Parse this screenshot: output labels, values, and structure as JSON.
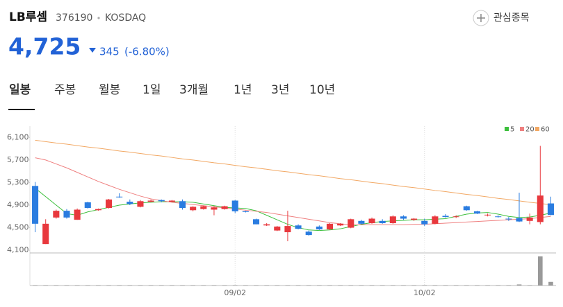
{
  "header": {
    "name": "LB루셈",
    "code": "376190",
    "market": "KOSDAQ",
    "watch": "관심종목",
    "price": "4,725",
    "change": "345",
    "change_pct": "(-6.80%)"
  },
  "tabs": [
    "일봉",
    "주봉",
    "월봉",
    "1일",
    "3개월",
    "1년",
    "3년",
    "10년"
  ],
  "chart_data": {
    "type": "candlestick",
    "categories": [
      null,
      null,
      null,
      null,
      null,
      null,
      null,
      null,
      null,
      null,
      null,
      null,
      null,
      null,
      null,
      null,
      null,
      null,
      null,
      "09/02",
      null,
      null,
      null,
      null,
      null,
      null,
      null,
      null,
      null,
      null,
      null,
      null,
      null,
      null,
      null,
      null,
      null,
      "10/02",
      null,
      null,
      null,
      null,
      null,
      null,
      null,
      null,
      null,
      null,
      null,
      null
    ],
    "candles": [
      [
        5240,
        5310,
        4420,
        4570
      ],
      [
        4210,
        4650,
        4210,
        4570
      ],
      [
        4680,
        4820,
        4660,
        4800
      ],
      [
        4800,
        4830,
        4660,
        4680
      ],
      [
        4640,
        4840,
        4640,
        4820
      ],
      [
        4950,
        4960,
        4840,
        4850
      ],
      [
        4810,
        4840,
        4800,
        4830
      ],
      [
        4850,
        5010,
        4840,
        5000
      ],
      [
        5050,
        5110,
        5030,
        5040
      ],
      [
        4960,
        5000,
        4900,
        4920
      ],
      [
        4870,
        4990,
        4860,
        4970
      ],
      [
        4960,
        5000,
        4950,
        4980
      ],
      [
        4990,
        5000,
        4950,
        4970
      ],
      [
        4960,
        4990,
        4950,
        4980
      ],
      [
        4970,
        5000,
        4820,
        4850
      ],
      [
        4810,
        4880,
        4790,
        4870
      ],
      [
        4830,
        4890,
        4820,
        4880
      ],
      [
        4820,
        4880,
        4720,
        4860
      ],
      [
        4830,
        4890,
        4820,
        4880
      ],
      [
        4980,
        4990,
        4760,
        4790
      ],
      [
        4790,
        4800,
        4770,
        4780
      ],
      [
        4650,
        4660,
        4560,
        4560
      ],
      [
        4540,
        4580,
        4530,
        4560
      ],
      [
        4450,
        4530,
        4440,
        4520
      ],
      [
        4420,
        4800,
        4260,
        4530
      ],
      [
        4540,
        4560,
        4470,
        4480
      ],
      [
        4430,
        4450,
        4360,
        4370
      ],
      [
        4520,
        4540,
        4460,
        4470
      ],
      [
        4470,
        4580,
        4460,
        4570
      ],
      [
        4540,
        4580,
        4530,
        4570
      ],
      [
        4500,
        4660,
        4490,
        4650
      ],
      [
        4620,
        4640,
        4560,
        4570
      ],
      [
        4580,
        4680,
        4570,
        4660
      ],
      [
        4620,
        4650,
        4570,
        4580
      ],
      [
        4580,
        4720,
        4570,
        4700
      ],
      [
        4700,
        4720,
        4640,
        4660
      ],
      [
        4640,
        4670,
        4620,
        4660
      ],
      [
        4620,
        4660,
        4530,
        4560
      ],
      [
        4570,
        4720,
        4560,
        4700
      ],
      [
        4710,
        4740,
        4680,
        4690
      ],
      [
        4690,
        4720,
        4670,
        4700
      ],
      [
        4880,
        4890,
        4800,
        4810
      ],
      [
        4790,
        4800,
        4740,
        4750
      ],
      [
        4720,
        4750,
        4700,
        4730
      ],
      [
        4700,
        4720,
        4680,
        4690
      ],
      [
        4660,
        4690,
        4620,
        4650
      ],
      [
        4670,
        5120,
        4600,
        4610
      ],
      [
        4620,
        4750,
        4560,
        4680
      ],
      [
        4600,
        5950,
        4560,
        5070
      ],
      [
        4930,
        5050,
        4720,
        4725
      ]
    ],
    "up_color": "#e8383d",
    "down_color": "#2a7ce0",
    "volume": [
      60000,
      60000,
      60000,
      60000,
      60000,
      60000,
      60000,
      60000,
      60000,
      60000,
      60000,
      60000,
      60000,
      60000,
      60000,
      60000,
      60000,
      60000,
      60000,
      60000,
      60000,
      60000,
      60000,
      60000,
      60000,
      60000,
      60000,
      60000,
      60000,
      60000,
      60000,
      60000,
      60000,
      60000,
      60000,
      60000,
      60000,
      60000,
      60000,
      60000,
      60000,
      60000,
      60000,
      60000,
      60000,
      60000,
      150000,
      60000,
      4000000,
      500000
    ],
    "volume_color": "#9a9a9a",
    "series": [
      {
        "name": "5",
        "color": "#3cbf3c",
        "values": [
          5200,
          5050,
          4900,
          4750,
          4720,
          4780,
          4820,
          4860,
          4900,
          4920,
          4940,
          4950,
          4960,
          4960,
          4960,
          4950,
          4920,
          4890,
          4860,
          4850,
          4840,
          4800,
          4720,
          4640,
          4560,
          4500,
          4460,
          4450,
          4460,
          4480,
          4520,
          4560,
          4590,
          4610,
          4620,
          4630,
          4640,
          4640,
          4650,
          4660,
          4700,
          4740,
          4760,
          4770,
          4740,
          4700,
          4680,
          4690,
          4720,
          4760
        ]
      },
      {
        "name": "20",
        "color": "#ef8080",
        "values": [
          5740,
          5700,
          5630,
          5560,
          5480,
          5400,
          5320,
          5250,
          5180,
          5120,
          5060,
          5010,
          4980,
          4950,
          4930,
          4910,
          4890,
          4870,
          4850,
          4830,
          4810,
          4790,
          4770,
          4740,
          4710,
          4680,
          4650,
          4620,
          4590,
          4570,
          4550,
          4550,
          4550,
          4550,
          4550,
          4550,
          4560,
          4560,
          4570,
          4580,
          4590,
          4600,
          4610,
          4620,
          4630,
          4640,
          4650,
          4660,
          4680,
          4700
        ]
      },
      {
        "name": "60",
        "color": "#f2a864",
        "values": [
          6050,
          6025,
          6000,
          5980,
          5955,
          5930,
          5910,
          5885,
          5860,
          5840,
          5815,
          5790,
          5770,
          5745,
          5720,
          5700,
          5675,
          5650,
          5630,
          5605,
          5580,
          5560,
          5535,
          5510,
          5490,
          5465,
          5440,
          5420,
          5395,
          5370,
          5350,
          5325,
          5300,
          5280,
          5255,
          5230,
          5210,
          5185,
          5160,
          5140,
          5115,
          5090,
          5070,
          5045,
          5020,
          5000,
          4975,
          4950,
          4930,
          4905
        ]
      }
    ],
    "ylim": [
      4040,
      6300
    ],
    "yticks": [
      {
        "value": 4100,
        "label": "4,100"
      },
      {
        "value": 4500,
        "label": "4,500"
      },
      {
        "value": 4900,
        "label": "4,900"
      },
      {
        "value": 5300,
        "label": "5,300"
      },
      {
        "value": 5700,
        "label": "5,700"
      },
      {
        "value": 6100,
        "label": "6,100"
      }
    ]
  }
}
